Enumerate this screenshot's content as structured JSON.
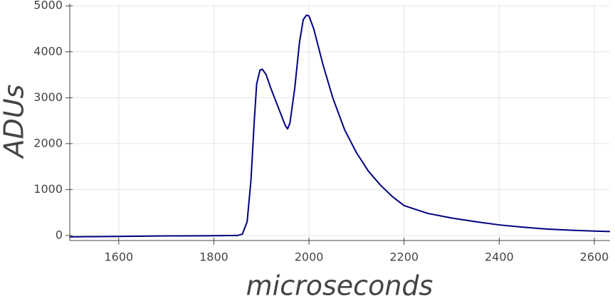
{
  "chart_data": {
    "type": "line",
    "xlabel": "microseconds",
    "ylabel": "ADUs",
    "x": [
      1497,
      1600,
      1700,
      1800,
      1850,
      1860,
      1870,
      1878,
      1885,
      1890,
      1897,
      1902,
      1910,
      1920,
      1935,
      1950,
      1955,
      1960,
      1970,
      1980,
      1988,
      1995,
      2000,
      2010,
      2030,
      2050,
      2075,
      2100,
      2125,
      2150,
      2175,
      2200,
      2250,
      2300,
      2350,
      2400,
      2450,
      2500,
      2550,
      2600,
      2633
    ],
    "values": [
      -30,
      -20,
      -10,
      -5,
      0,
      30,
      300,
      1200,
      2500,
      3300,
      3600,
      3620,
      3500,
      3200,
      2800,
      2400,
      2320,
      2450,
      3200,
      4200,
      4700,
      4800,
      4780,
      4500,
      3700,
      3000,
      2300,
      1800,
      1400,
      1100,
      850,
      650,
      480,
      380,
      300,
      230,
      180,
      140,
      115,
      95,
      85
    ],
    "color": "#000080",
    "xlim": [
      1497,
      2633
    ],
    "xticks": [
      1600,
      1800,
      2000,
      2200,
      2400,
      2600
    ],
    "ylim": [
      -110,
      5050
    ],
    "yticks": [
      0,
      1000,
      2000,
      3000,
      4000,
      5000
    ],
    "grid": true
  }
}
